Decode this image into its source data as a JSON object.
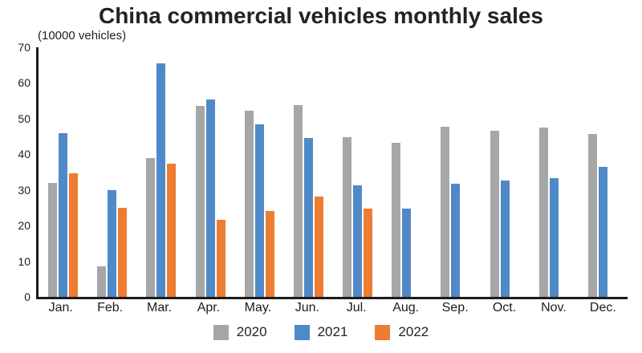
{
  "chart_data": {
    "type": "bar",
    "title": "China commercial vehicles monthly sales",
    "unit_label": "(10000 vehicles)",
    "categories": [
      "Jan.",
      "Feb.",
      "Mar.",
      "Apr.",
      "May.",
      "Jun.",
      "Jul.",
      "Aug.",
      "Sep.",
      "Oct.",
      "Nov.",
      "Dec."
    ],
    "series": [
      {
        "name": "2020",
        "color": "#a6a6a6",
        "values": [
          32,
          8.5,
          39,
          53.6,
          52.2,
          53.8,
          44.8,
          43.2,
          47.8,
          46.5,
          47.5,
          45.8
        ]
      },
      {
        "name": "2021",
        "color": "#5089c8",
        "values": [
          46,
          30,
          65.5,
          55.3,
          48.5,
          44.6,
          31.2,
          24.8,
          31.8,
          32.6,
          33.2,
          36.5
        ]
      },
      {
        "name": "2022",
        "color": "#ed7d31",
        "values": [
          34.6,
          25,
          37.3,
          21.5,
          24,
          28.1,
          24.8,
          null,
          null,
          null,
          null,
          null
        ]
      }
    ],
    "ylim": [
      0,
      70
    ],
    "yticks": [
      0,
      10,
      20,
      30,
      40,
      50,
      60,
      70
    ],
    "grid": false,
    "legend_position": "bottom",
    "axis_color": "#1c1c1c"
  }
}
